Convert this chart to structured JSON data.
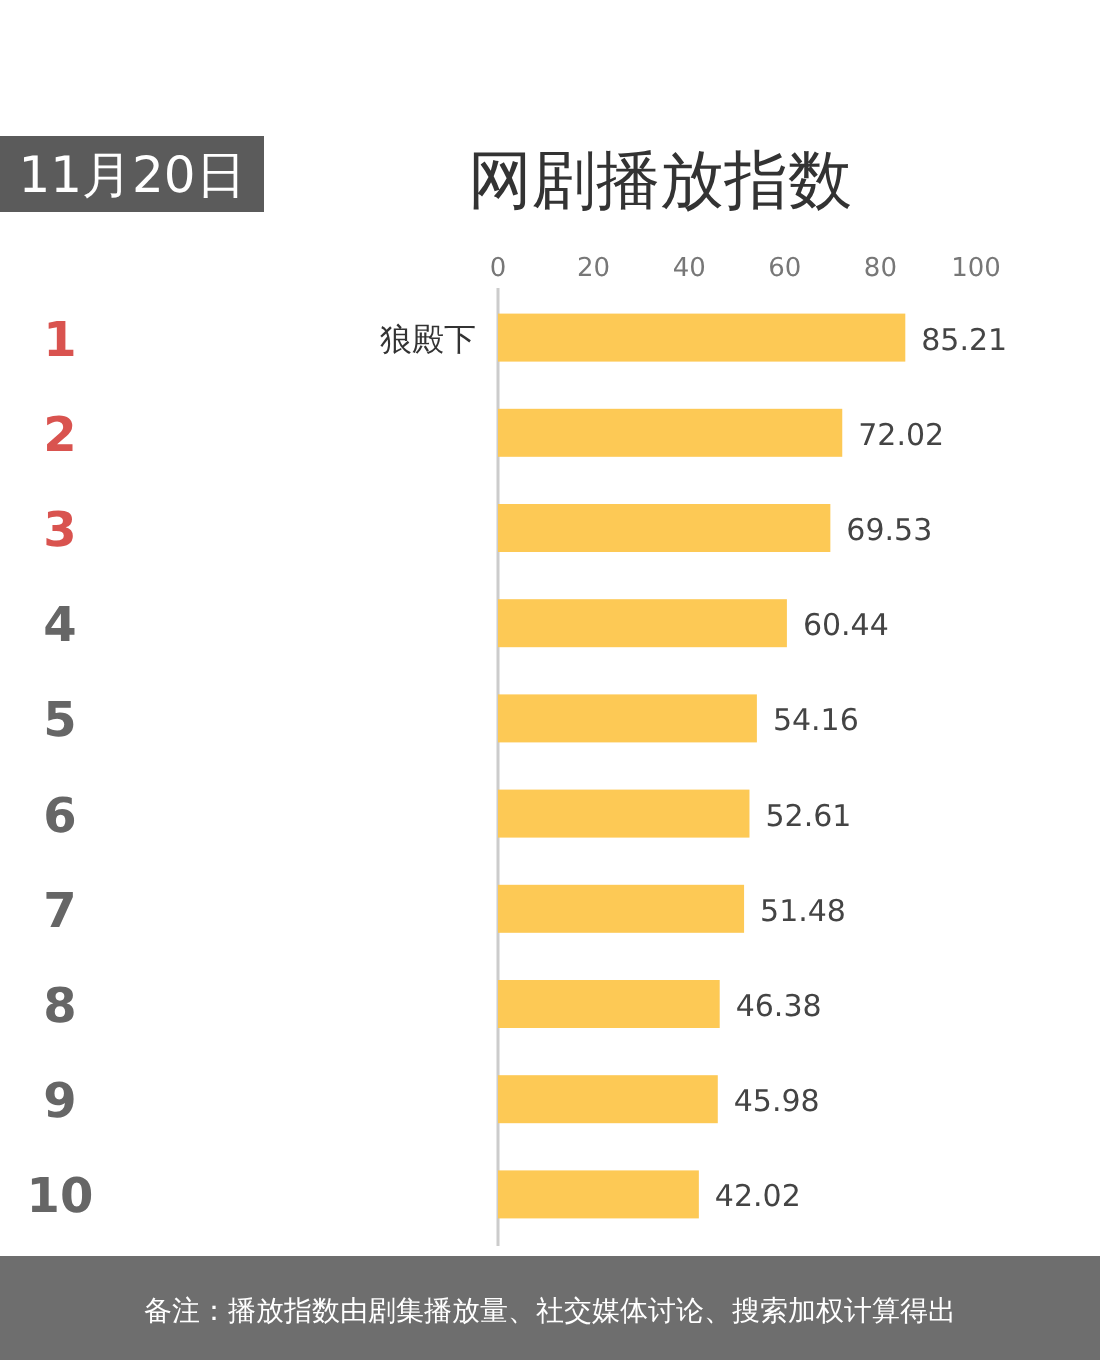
{
  "chart_data": {
    "type": "bar",
    "orientation": "horizontal",
    "title": "网剧播放指数",
    "subtitle": "11月20日",
    "categories": [
      "狼殿下",
      null,
      null,
      null,
      null,
      null,
      null,
      null,
      null,
      null
    ],
    "values": [
      85.21,
      72.02,
      69.53,
      60.44,
      54.16,
      52.61,
      51.48,
      46.38,
      45.98,
      42.02
    ],
    "color": "#fdc955",
    "xlim": [
      0,
      100
    ],
    "xticks": [
      0,
      20,
      40,
      60,
      80,
      100
    ],
    "data_labels": true,
    "annotations": [
      "1",
      "2",
      "3",
      "4",
      "5",
      "6",
      "7",
      "8",
      "9",
      "10",
      "备注：播放指数由剧集播放量、社交媒体讨论、搜索加权计算得出"
    ]
  }
}
